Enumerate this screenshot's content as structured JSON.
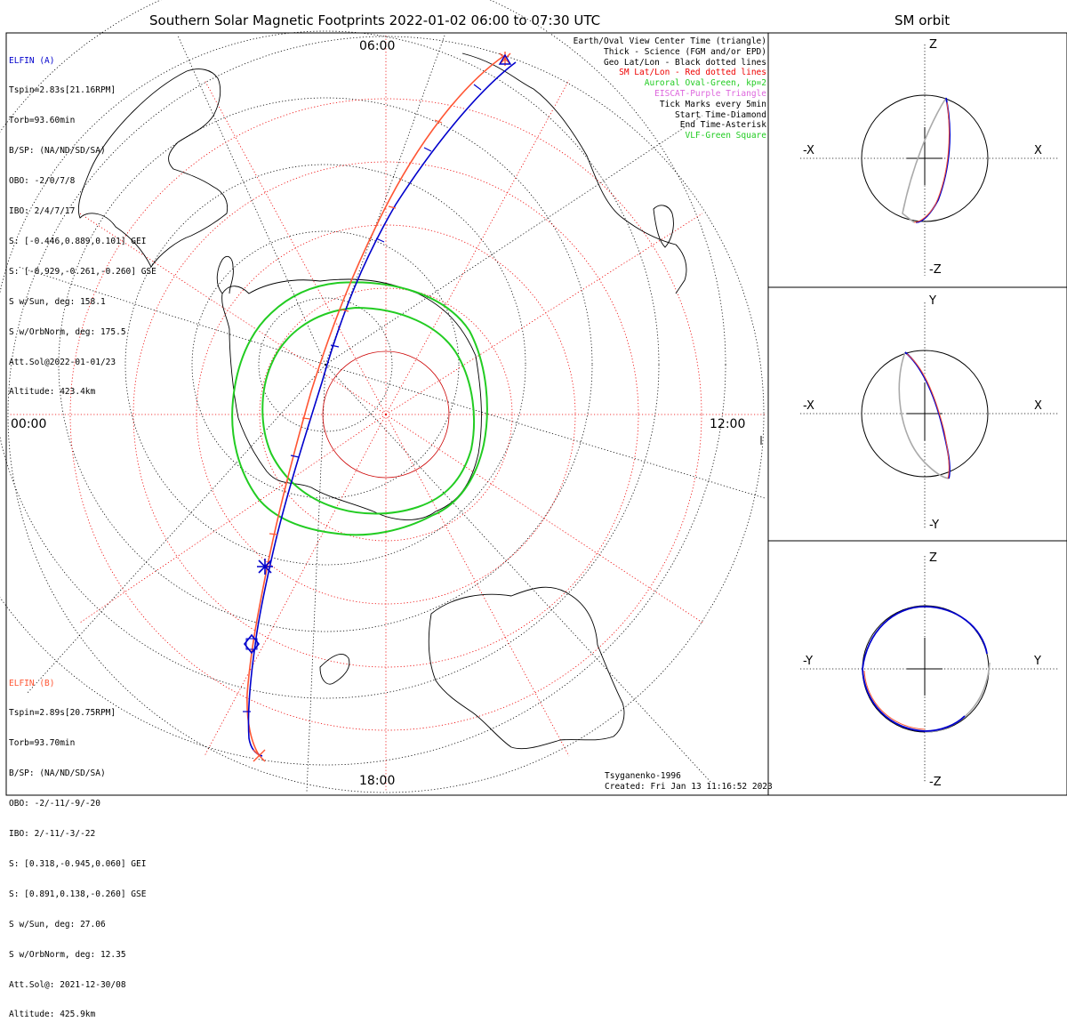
{
  "header": {
    "main_title": "Southern Solar Magnetic Footprints 2022-01-02 06:00 to 07:30 UTC",
    "side_title": "SM orbit"
  },
  "time_labels": {
    "top": "06:00",
    "left": "00:00",
    "right": "12:00",
    "bottom": "18:00"
  },
  "sat_a": {
    "name": "ELFIN (A)",
    "color": "#0000cc",
    "lines": [
      "Tspin=2.83s[21.16RPM]",
      "Torb=93.60min",
      "B/SP: (NA/ND/SD/SA)",
      "OBO: -2/0/7/8",
      "IBO: 2/4/7/17",
      "S: [-0.446,0.889,0.101] GEI",
      "S: [-0.929,-0.261,-0.260] GSE",
      "S w/Sun, deg: 158.1",
      "S w/OrbNorm, deg: 175.5",
      "Att.Sol@2022-01-01/23",
      "Altitude: 423.4km"
    ]
  },
  "sat_b": {
    "name": "ELFIN (B)",
    "color": "#ff5533",
    "lines": [
      "Tspin=2.89s[20.75RPM]",
      "Torb=93.70min",
      "B/SP: (NA/ND/SD/SA)",
      "OBO: -2/-11/-9/-20",
      "IBO: 2/-11/-3/-22",
      "S: [0.318,-0.945,0.060] GEI",
      "S: [0.891,0.138,-0.260] GSE",
      "S w/Sun, deg: 27.06",
      "S w/OrbNorm, deg: 12.35",
      "Att.Sol@: 2021-12-30/08",
      "Altitude: 425.9km"
    ]
  },
  "legend": [
    {
      "text": "Earth/Oval View Center Time (triangle)",
      "color": "#000000"
    },
    {
      "text": "Thick - Science (FGM and/or EPD)",
      "color": "#000000"
    },
    {
      "text": "Geo Lat/Lon - Black dotted lines",
      "color": "#000000"
    },
    {
      "text": "SM Lat/Lon - Red dotted lines",
      "color": "#ee0000"
    },
    {
      "text": "Auroral Oval-Green, kp=2",
      "color": "#22cc22"
    },
    {
      "text": "EISCAT-Purple Triangle",
      "color": "#dd66dd"
    },
    {
      "text": "Tick Marks every 5min",
      "color": "#000000"
    },
    {
      "text": "Start Time-Diamond",
      "color": "#000000"
    },
    {
      "text": "End Time-Asterisk",
      "color": "#000000"
    },
    {
      "text": "VLF-Green Square",
      "color": "#22cc22"
    }
  ],
  "credit": {
    "line1": "Tsyganenko-1996",
    "line2": "Created: Fri Jan 13 11:16:52 2023"
  },
  "orbit_panels": [
    {
      "top": "Z",
      "bottom": "-Z",
      "left": "-X",
      "right": "X"
    },
    {
      "top": "Y",
      "bottom": "-Y",
      "left": "-X",
      "right": "X"
    },
    {
      "top": "Z",
      "bottom": "-Z",
      "left": "-Y",
      "right": "Y"
    }
  ],
  "chart_data": {
    "type": "scatter",
    "title": "Southern Solar Magnetic Footprints 2022-01-02 06:00 to 07:30 UTC",
    "projection": "southern polar",
    "series": [
      {
        "name": "ELFIN (A)",
        "color": "#0000cc"
      },
      {
        "name": "ELFIN (B)",
        "color": "#ff5533"
      }
    ],
    "auroral_oval_kp": 2,
    "colors": {
      "geo_grid": "#000000",
      "sm_grid": "#ee0000",
      "oval": "#22cc22",
      "orbit_gray": "#aaaaaa"
    }
  }
}
